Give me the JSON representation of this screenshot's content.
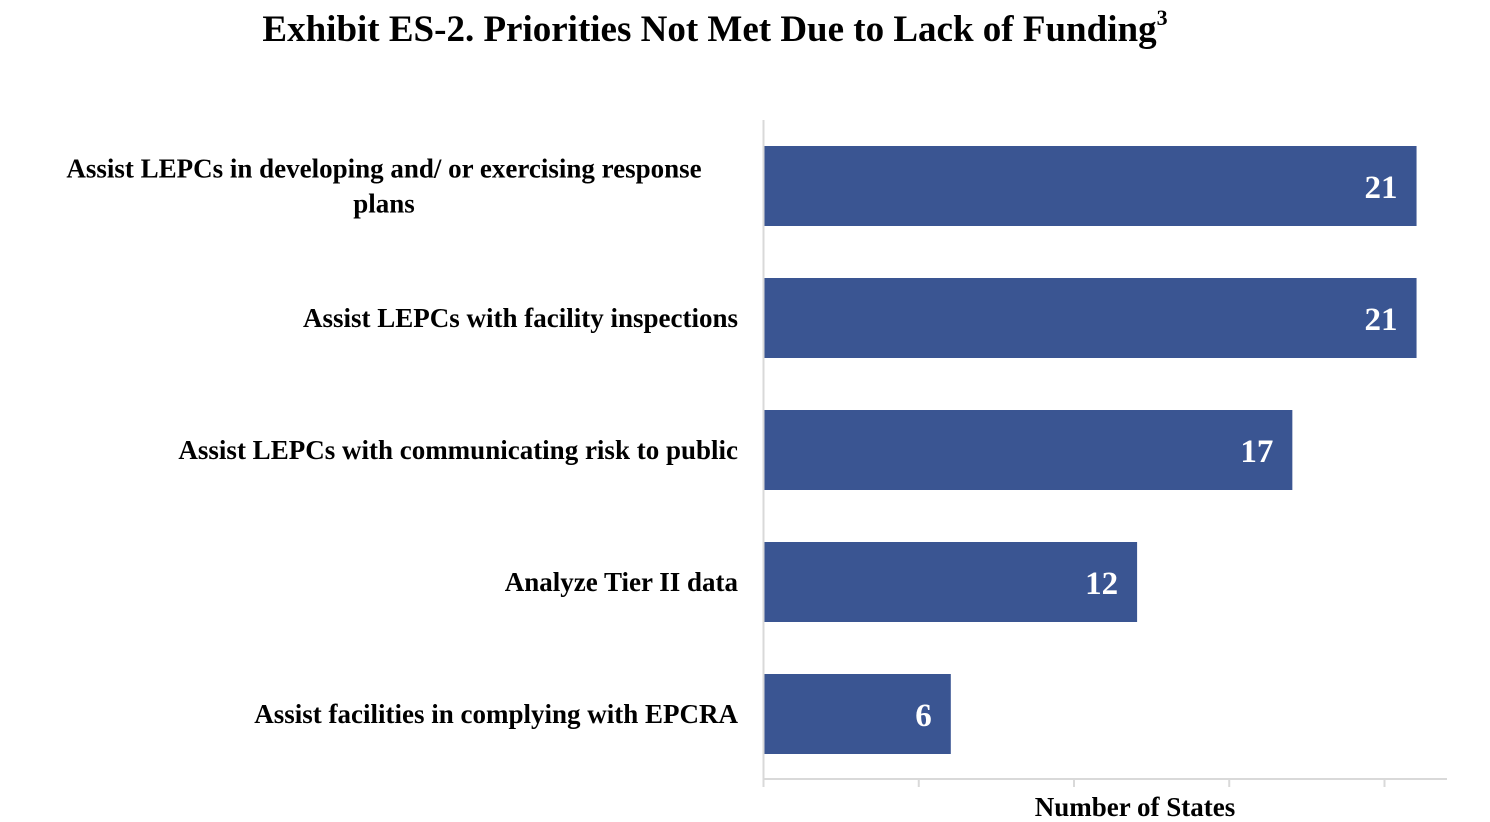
{
  "chart_data": {
    "type": "bar",
    "orientation": "horizontal",
    "title": "Exhibit ES-2. Priorities Not Met Due to Lack of Funding",
    "title_superscript": "3",
    "xlabel": "Number of States",
    "ylabel": "",
    "categories": [
      "Assist LEPCs in developing and/ or exercising response plans",
      "Assist LEPCs with facility inspections",
      "Assist LEPCs with communicating risk to public",
      "Analyze Tier II data",
      "Assist facilities in complying with EPCRA"
    ],
    "category_lines": [
      [
        "Assist LEPCs in developing and/ or exercising response",
        "plans"
      ],
      [
        "Assist LEPCs with facility inspections"
      ],
      [
        "Assist LEPCs with communicating risk to public"
      ],
      [
        "Analyze Tier II data"
      ],
      [
        "Assist facilities in complying with EPCRA"
      ]
    ],
    "values": [
      21,
      21,
      17,
      12,
      6
    ],
    "data_labels": [
      "21",
      "21",
      "17",
      "12",
      "6"
    ],
    "xlim": [
      0,
      22
    ],
    "x_ticks": [
      0,
      5,
      10,
      15,
      20
    ],
    "tick_labels_shown": false,
    "grid": false,
    "legend": "none",
    "bar_color": "#3a5592",
    "axis_color": "#d9d9d9",
    "label_color": "#ffffff"
  }
}
